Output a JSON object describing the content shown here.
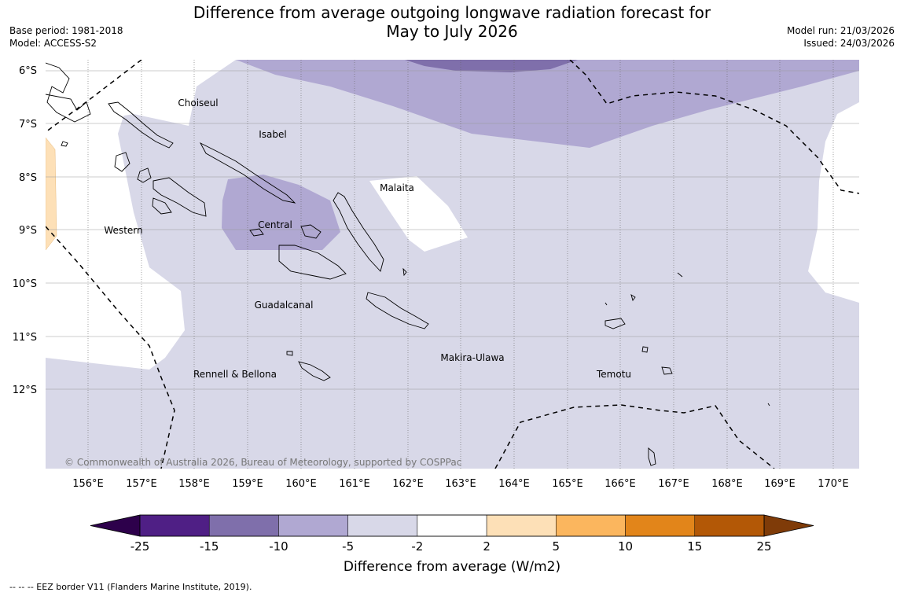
{
  "header": {
    "title_line1": "Difference from average outgoing longwave radiation forecast for",
    "title_line2": "May to July 2026",
    "base_period": "Base period: 1981-2018",
    "model": "Model: ACCESS-S2",
    "model_run": "Model run: 21/03/2026",
    "issued": "Issued: 24/03/2026"
  },
  "map": {
    "lat_labels": [
      "6°S",
      "7°S",
      "8°S",
      "9°S",
      "10°S",
      "11°S",
      "12°S"
    ],
    "lon_labels": [
      "156°E",
      "157°E",
      "158°E",
      "159°E",
      "160°E",
      "161°E",
      "162°E",
      "163°E",
      "164°E",
      "165°E",
      "166°E",
      "167°E",
      "168°E",
      "169°E",
      "170°E"
    ],
    "places": [
      "Choiseul",
      "Isabel",
      "Malaita",
      "Central",
      "Western",
      "Guadalcanal",
      "Makira-Ulawa",
      "Rennell & Bellona",
      "Temotu"
    ],
    "copyright": "© Commonwealth of Australia 2026, Bureau of Meteorology, supported by COSPPac"
  },
  "colorbar": {
    "ticks": [
      "-25",
      "-15",
      "-10",
      "-5",
      "-2",
      "2",
      "5",
      "10",
      "15",
      "25"
    ],
    "colors": [
      "#4f1f85",
      "#7f6fab",
      "#b0a8d2",
      "#d8d8e8",
      "#ffffff",
      "#fde0b7",
      "#fbb65e",
      "#e2851a",
      "#b35806"
    ],
    "under_color": "#2d004b",
    "over_color": "#7f3b08",
    "label": "Difference from average (W/m2)"
  },
  "footer": "--  --  -- EEZ border V11 (Flanders Marine Institute, 2019)."
}
